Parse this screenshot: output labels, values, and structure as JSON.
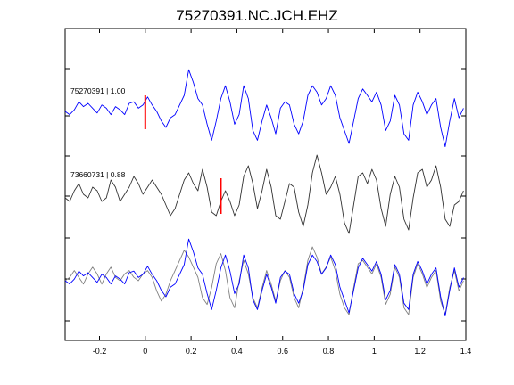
{
  "chart_data": {
    "type": "line",
    "title": "75270391.NC.JCH.EHZ",
    "xlim": [
      -0.35,
      1.4
    ],
    "x_ticks": [
      -0.2,
      0,
      0.2,
      0.4,
      0.6,
      0.8,
      1,
      1.2,
      1.4
    ],
    "x_tick_labels": [
      "-0.2",
      "0",
      "0.2",
      "0.4",
      "0.6",
      "0.8",
      "1",
      "1.2",
      "1.4"
    ],
    "grid": false,
    "colors": {
      "blue": "#0000ff",
      "dark": "#333333",
      "gray": "#808080",
      "pick": "#ff0000"
    },
    "traces": [
      {
        "label": "75270391 | 1.00",
        "color": "#0000ff",
        "pick_time": 0.0
      },
      {
        "label": "73660731 | 0.88",
        "color": "#333333",
        "pick_time": 0.33
      }
    ],
    "overlay": {
      "series_colors": [
        "#808080",
        "#0000ff"
      ]
    },
    "waveform_1": {
      "x": [
        -0.35,
        -0.33,
        -0.31,
        -0.29,
        -0.27,
        -0.25,
        -0.23,
        -0.21,
        -0.19,
        -0.17,
        -0.15,
        -0.13,
        -0.11,
        -0.09,
        -0.07,
        -0.05,
        -0.03,
        -0.01,
        0.01,
        0.03,
        0.05,
        0.07,
        0.09,
        0.11,
        0.13,
        0.15,
        0.17,
        0.19,
        0.21,
        0.23,
        0.25,
        0.27,
        0.29,
        0.31,
        0.33,
        0.35,
        0.37,
        0.39,
        0.41,
        0.43,
        0.45,
        0.47,
        0.49,
        0.51,
        0.53,
        0.55,
        0.57,
        0.59,
        0.61,
        0.63,
        0.65,
        0.67,
        0.69,
        0.71,
        0.73,
        0.75,
        0.77,
        0.79,
        0.81,
        0.83,
        0.85,
        0.87,
        0.89,
        0.91,
        0.93,
        0.95,
        0.97,
        0.99,
        1.01,
        1.03,
        1.05,
        1.07,
        1.09,
        1.11,
        1.13,
        1.15,
        1.17,
        1.19,
        1.21,
        1.23,
        1.25,
        1.27,
        1.29,
        1.31,
        1.33,
        1.35,
        1.37,
        1.39
      ],
      "y": [
        0,
        -0.1,
        0.05,
        0.3,
        0.15,
        0.25,
        0.1,
        -0.05,
        0.2,
        0.1,
        -0.1,
        0.15,
        0.05,
        -0.1,
        0.25,
        0.3,
        0.1,
        0.2,
        0.45,
        0.2,
        0,
        -0.3,
        -0.5,
        -0.2,
        -0.1,
        0.2,
        0.5,
        1.3,
        0.9,
        0.4,
        0.2,
        -0.4,
        -0.9,
        -0.3,
        0.4,
        0.8,
        0.3,
        -0.4,
        -0.1,
        0.8,
        0.4,
        -0.6,
        -0.9,
        -0.3,
        0.2,
        -0.2,
        -0.7,
        0.1,
        0.3,
        0.2,
        -0.4,
        -0.7,
        -0.3,
        0.5,
        0.8,
        0.6,
        0.2,
        0.4,
        0.8,
        0.5,
        -0.2,
        -0.6,
        -1.0,
        -0.3,
        0.4,
        0.7,
        0.5,
        0.3,
        0.6,
        0.2,
        -0.6,
        -0.3,
        0.5,
        0.2,
        -0.7,
        -0.9,
        0.2,
        0.6,
        0.3,
        -0.1,
        0.2,
        0.4,
        -0.5,
        -1.1,
        -0.3,
        0.4,
        -0.2,
        0.1
      ]
    },
    "waveform_2": {
      "x": [
        -0.35,
        -0.33,
        -0.31,
        -0.29,
        -0.27,
        -0.25,
        -0.23,
        -0.21,
        -0.19,
        -0.17,
        -0.15,
        -0.13,
        -0.11,
        -0.09,
        -0.07,
        -0.05,
        -0.03,
        -0.01,
        0.01,
        0.03,
        0.05,
        0.07,
        0.09,
        0.11,
        0.13,
        0.15,
        0.17,
        0.19,
        0.21,
        0.23,
        0.25,
        0.27,
        0.29,
        0.31,
        0.33,
        0.35,
        0.37,
        0.39,
        0.41,
        0.43,
        0.45,
        0.47,
        0.49,
        0.51,
        0.53,
        0.55,
        0.57,
        0.59,
        0.61,
        0.63,
        0.65,
        0.67,
        0.69,
        0.71,
        0.73,
        0.75,
        0.77,
        0.79,
        0.81,
        0.83,
        0.85,
        0.87,
        0.89,
        0.91,
        0.93,
        0.95,
        0.97,
        0.99,
        1.01,
        1.03,
        1.05,
        1.07,
        1.09,
        1.11,
        1.13,
        1.15,
        1.17,
        1.19,
        1.21,
        1.23,
        1.25,
        1.27,
        1.29,
        1.31,
        1.33,
        1.35,
        1.37,
        1.39
      ],
      "y": [
        0,
        -0.1,
        0.2,
        0.4,
        0.1,
        0.0,
        0.3,
        0.2,
        -0.1,
        0.0,
        0.5,
        0.3,
        -0.1,
        0.1,
        0.3,
        0.6,
        0.4,
        0.1,
        0.3,
        0.5,
        0.3,
        0.1,
        -0.2,
        -0.5,
        -0.3,
        0.1,
        0.5,
        0.7,
        0.4,
        0.2,
        0.8,
        0.3,
        -0.4,
        -0.5,
        -0.1,
        0.2,
        -0.1,
        -0.5,
        -0.2,
        0.6,
        0.9,
        0.4,
        -0.3,
        0.2,
        0.8,
        0.3,
        -0.5,
        -0.6,
        -0.1,
        0.4,
        0.3,
        -0.4,
        -0.8,
        -0.2,
        0.7,
        1.2,
        0.7,
        0.1,
        0.3,
        0.6,
        0.1,
        -0.7,
        -1.0,
        -0.2,
        0.6,
        0.7,
        0.4,
        0.8,
        0.5,
        -0.3,
        -0.8,
        0.1,
        0.6,
        0.3,
        -0.6,
        -0.9,
        0.0,
        0.7,
        0.8,
        0.3,
        0.5,
        0.9,
        0.3,
        -0.6,
        -0.8,
        -0.2,
        -0.1,
        0.2
      ]
    },
    "overlay_gray": {
      "x": [
        -0.35,
        -0.33,
        -0.31,
        -0.29,
        -0.27,
        -0.25,
        -0.23,
        -0.21,
        -0.19,
        -0.17,
        -0.15,
        -0.13,
        -0.11,
        -0.09,
        -0.07,
        -0.05,
        -0.03,
        -0.01,
        0.01,
        0.03,
        0.05,
        0.07,
        0.09,
        0.11,
        0.13,
        0.15,
        0.17,
        0.19,
        0.21,
        0.23,
        0.25,
        0.27,
        0.29,
        0.31,
        0.33,
        0.35,
        0.37,
        0.39,
        0.41,
        0.43,
        0.45,
        0.47,
        0.49,
        0.51,
        0.53,
        0.55,
        0.57,
        0.59,
        0.61,
        0.63,
        0.65,
        0.67,
        0.69,
        0.71,
        0.73,
        0.75,
        0.77,
        0.79,
        0.81,
        0.83,
        0.85,
        0.87,
        0.89,
        0.91,
        0.93,
        0.95,
        0.97,
        0.99,
        1.01,
        1.03,
        1.05,
        1.07,
        1.09,
        1.11,
        1.13,
        1.15,
        1.17,
        1.19,
        1.21,
        1.23,
        1.25,
        1.27,
        1.29,
        1.31,
        1.33,
        1.35,
        1.37,
        1.39
      ],
      "y": [
        0,
        0.1,
        0.3,
        0.1,
        -0.1,
        0.2,
        0.4,
        0.2,
        -0.1,
        0.2,
        0.4,
        0.1,
        0.0,
        0.2,
        0.3,
        0.1,
        0.0,
        0.2,
        0.3,
        0.1,
        -0.3,
        -0.6,
        -0.4,
        0.0,
        0.3,
        0.6,
        0.9,
        0.7,
        0.4,
        0.1,
        -0.5,
        -0.7,
        -0.2,
        0.5,
        0.8,
        0.3,
        -0.5,
        -0.8,
        0.0,
        0.6,
        0.2,
        -0.5,
        -0.8,
        -0.2,
        0.3,
        -0.1,
        -0.6,
        0.0,
        0.3,
        0.1,
        -0.5,
        -0.8,
        -0.2,
        0.6,
        1.0,
        0.7,
        0.2,
        0.4,
        0.7,
        0.3,
        -0.4,
        -0.8,
        -1.0,
        -0.2,
        0.5,
        0.6,
        0.4,
        0.2,
        0.5,
        0.1,
        -0.7,
        -0.4,
        0.4,
        0.1,
        -0.8,
        -1.0,
        0.1,
        0.5,
        0.2,
        -0.2,
        0.1,
        0.3,
        -0.6,
        -1.0,
        -0.2,
        0.3,
        -0.3,
        0.0
      ]
    },
    "overlay_blue": {
      "x": [
        -0.35,
        -0.33,
        -0.31,
        -0.29,
        -0.27,
        -0.25,
        -0.23,
        -0.21,
        -0.19,
        -0.17,
        -0.15,
        -0.13,
        -0.11,
        -0.09,
        -0.07,
        -0.05,
        -0.03,
        -0.01,
        0.01,
        0.03,
        0.05,
        0.07,
        0.09,
        0.11,
        0.13,
        0.15,
        0.17,
        0.19,
        0.21,
        0.23,
        0.25,
        0.27,
        0.29,
        0.31,
        0.33,
        0.35,
        0.37,
        0.39,
        0.41,
        0.43,
        0.45,
        0.47,
        0.49,
        0.51,
        0.53,
        0.55,
        0.57,
        0.59,
        0.61,
        0.63,
        0.65,
        0.67,
        0.69,
        0.71,
        0.73,
        0.75,
        0.77,
        0.79,
        0.81,
        0.83,
        0.85,
        0.87,
        0.89,
        0.91,
        0.93,
        0.95,
        0.97,
        0.99,
        1.01,
        1.03,
        1.05,
        1.07,
        1.09,
        1.11,
        1.13,
        1.15,
        1.17,
        1.19,
        1.21,
        1.23,
        1.25,
        1.27,
        1.29,
        1.31,
        1.33,
        1.35,
        1.37,
        1.39
      ],
      "y": [
        0,
        -0.1,
        0.05,
        0.3,
        0.15,
        0.25,
        0.1,
        -0.05,
        0.2,
        0.1,
        -0.1,
        0.15,
        0.05,
        -0.1,
        0.25,
        0.3,
        0.1,
        0.2,
        0.45,
        0.2,
        0,
        -0.3,
        -0.5,
        -0.2,
        -0.1,
        0.2,
        0.5,
        1.3,
        0.9,
        0.4,
        0.2,
        -0.4,
        -0.9,
        -0.3,
        0.4,
        0.8,
        0.3,
        -0.4,
        -0.1,
        0.8,
        0.4,
        -0.6,
        -0.9,
        -0.3,
        0.2,
        -0.2,
        -0.7,
        0.1,
        0.3,
        0.2,
        -0.4,
        -0.7,
        -0.3,
        0.5,
        0.8,
        0.6,
        0.2,
        0.4,
        0.8,
        0.5,
        -0.2,
        -0.6,
        -1.0,
        -0.3,
        0.4,
        0.7,
        0.5,
        0.3,
        0.6,
        0.2,
        -0.6,
        -0.3,
        0.5,
        0.2,
        -0.7,
        -0.9,
        0.2,
        0.6,
        0.3,
        -0.1,
        0.2,
        0.4,
        -0.5,
        -1.1,
        -0.3,
        0.4,
        -0.2,
        0.1
      ]
    }
  }
}
